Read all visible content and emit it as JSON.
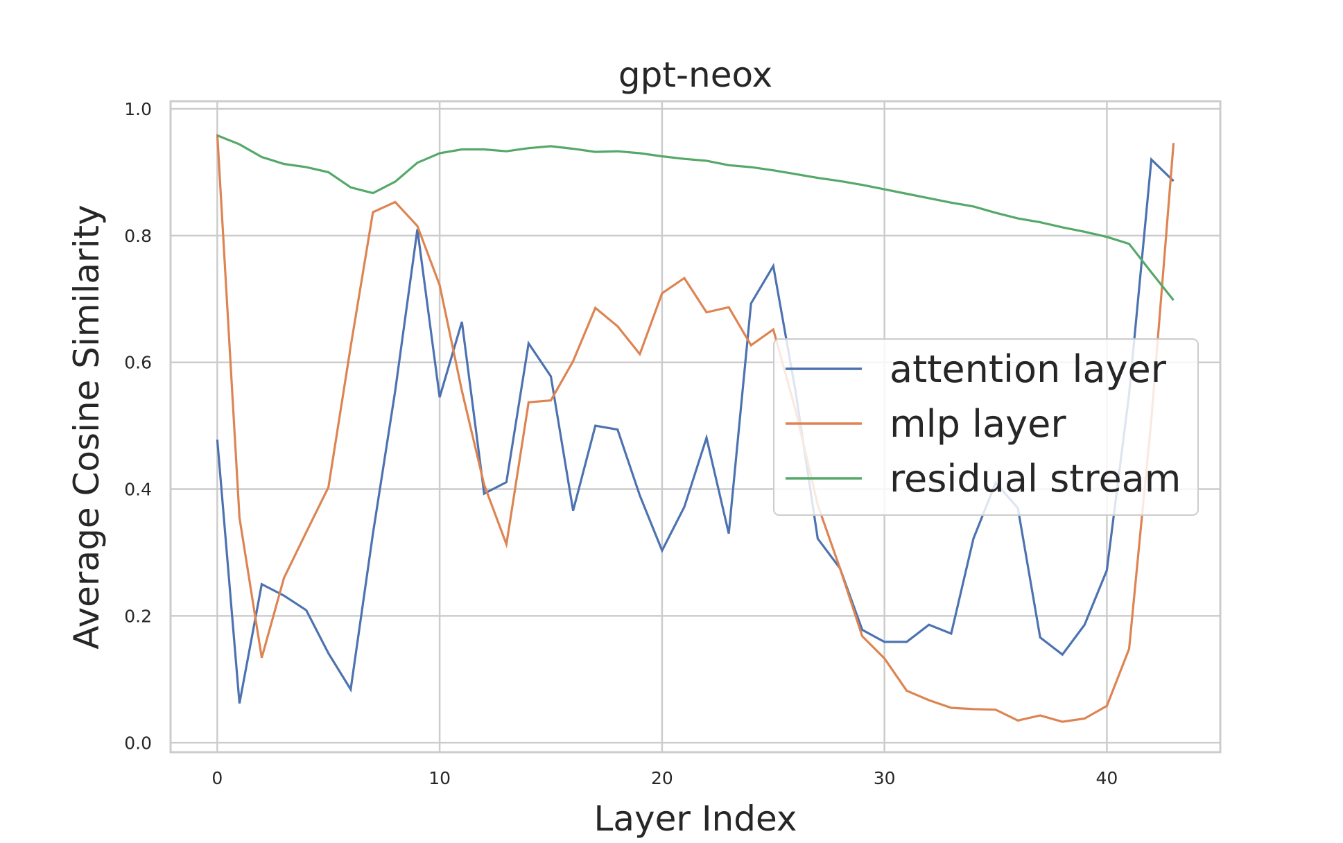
{
  "chart_data": {
    "type": "line",
    "title": "gpt-neox",
    "xlabel": "Layer Index",
    "ylabel": "Average Cosine Similarity",
    "xlim": [
      -2.1,
      45.1
    ],
    "ylim": [
      -0.015,
      1.012
    ],
    "xticks": [
      0,
      10,
      20,
      30,
      40
    ],
    "yticks": [
      0.0,
      0.2,
      0.4,
      0.6,
      0.8,
      1.0
    ],
    "xtick_labels": [
      "0",
      "10",
      "20",
      "30",
      "40"
    ],
    "ytick_labels": [
      "0.0",
      "0.2",
      "0.4",
      "0.6",
      "0.8",
      "1.0"
    ],
    "grid": true,
    "legend_position": "center-right",
    "x": [
      0,
      1,
      2,
      3,
      4,
      5,
      6,
      7,
      8,
      9,
      10,
      11,
      12,
      13,
      14,
      15,
      16,
      17,
      18,
      19,
      20,
      21,
      22,
      23,
      24,
      25,
      26,
      27,
      28,
      29,
      30,
      31,
      32,
      33,
      34,
      35,
      36,
      37,
      38,
      39,
      40,
      41,
      42,
      43
    ],
    "series": [
      {
        "name": "attention layer",
        "color": "#4c72b0",
        "values": [
          0.478,
          0.062,
          0.25,
          0.232,
          0.209,
          0.141,
          0.084,
          0.33,
          0.555,
          0.81,
          0.545,
          0.664,
          0.393,
          0.411,
          0.63,
          0.578,
          0.366,
          0.5,
          0.494,
          0.39,
          0.303,
          0.372,
          0.481,
          0.33,
          0.693,
          0.752,
          0.555,
          0.322,
          0.275,
          0.178,
          0.159,
          0.159,
          0.186,
          0.172,
          0.322,
          0.41,
          0.37,
          0.166,
          0.139,
          0.186,
          0.272,
          0.55,
          0.92,
          0.886
        ]
      },
      {
        "name": "mlp layer",
        "color": "#dd8452",
        "values": [
          0.96,
          0.355,
          0.134,
          0.26,
          0.332,
          0.403,
          0.625,
          0.837,
          0.853,
          0.815,
          0.722,
          0.555,
          0.407,
          0.313,
          0.537,
          0.54,
          0.602,
          0.686,
          0.657,
          0.613,
          0.709,
          0.733,
          0.679,
          0.687,
          0.627,
          0.652,
          0.525,
          0.375,
          0.275,
          0.168,
          0.133,
          0.082,
          0.067,
          0.055,
          0.053,
          0.052,
          0.035,
          0.043,
          0.033,
          0.038,
          0.058,
          0.148,
          0.51,
          0.946
        ]
      },
      {
        "name": "residual stream",
        "color": "#55a868",
        "values": [
          0.958,
          0.944,
          0.924,
          0.913,
          0.908,
          0.9,
          0.876,
          0.867,
          0.885,
          0.915,
          0.93,
          0.936,
          0.936,
          0.933,
          0.938,
          0.941,
          0.937,
          0.932,
          0.933,
          0.93,
          0.925,
          0.921,
          0.918,
          0.911,
          0.908,
          0.903,
          0.897,
          0.891,
          0.886,
          0.88,
          0.873,
          0.866,
          0.859,
          0.852,
          0.846,
          0.836,
          0.827,
          0.821,
          0.813,
          0.806,
          0.798,
          0.787,
          0.742,
          0.698
        ]
      }
    ]
  }
}
